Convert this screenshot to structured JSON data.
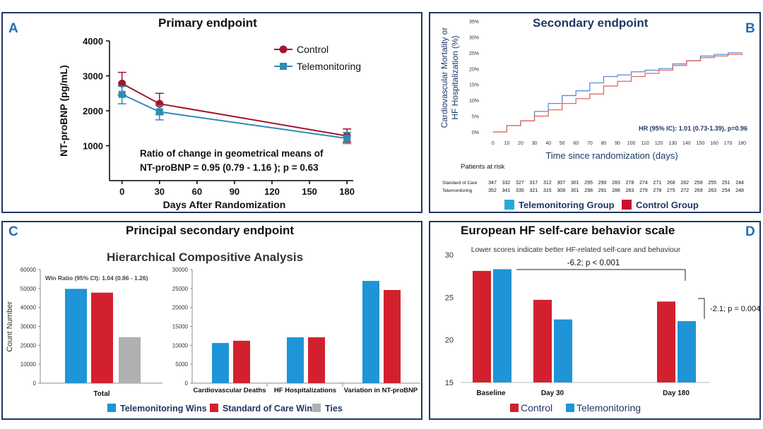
{
  "colors": {
    "control": "#a0172f",
    "tele": "#2e8bb5",
    "red": "#d3202e",
    "blue": "#1f94d6",
    "gray": "#b0b0b0",
    "navy": "#1f3864",
    "label": "#1f6fb5"
  },
  "panelA": {
    "letter": "A",
    "title": "Primary endpoint",
    "note_line1": "Ratio of change in geometrical means of",
    "note_line2": "NT-proBNP =  0.95 (0.79 - 1.16 ); p = 0.63",
    "chart_data": {
      "type": "line",
      "xlabel": "Days After Randomization",
      "ylabel": "NT-proBNP (pg/mL)",
      "x_ticks": [
        "0",
        "30",
        "60",
        "90",
        "120",
        "150",
        "180"
      ],
      "y_ticks": [
        "1000",
        "2000",
        "3000",
        "4000"
      ],
      "xlim": [
        -10,
        185
      ],
      "ylim": [
        0,
        4000
      ],
      "legend": "top-right",
      "series": [
        {
          "name": "Control",
          "x": [
            0,
            30,
            180
          ],
          "y": [
            2780,
            2200,
            1280
          ],
          "err_low": [
            2450,
            1900,
            1100
          ],
          "err_high": [
            3100,
            2500,
            1480
          ]
        },
        {
          "name": "Telemonitoring",
          "x": [
            0,
            30,
            180
          ],
          "y": [
            2470,
            1970,
            1210
          ],
          "err_low": [
            2200,
            1740,
            1060
          ],
          "err_high": [
            2700,
            2150,
            1380
          ]
        }
      ]
    }
  },
  "panelB": {
    "letter": "B",
    "title": "Secondary endpoint",
    "hr_text": "HR (95% IC): 1.01 (0.73-1.39), p=0.96",
    "risk_title": "Patients at risk",
    "risk_rows": [
      {
        "label": "Standard of Care",
        "values": [
          "347",
          "332",
          "327",
          "317",
          "312",
          "307",
          "301",
          "295",
          "290",
          "283",
          "278",
          "274",
          "271",
          "268",
          "262",
          "258",
          "255",
          "251",
          "244"
        ]
      },
      {
        "label": "Telemonitoring",
        "values": [
          "352",
          "341",
          "335",
          "321",
          "315",
          "308",
          "301",
          "298",
          "291",
          "286",
          "283",
          "279",
          "278",
          "275",
          "272",
          "269",
          "263",
          "254",
          "248"
        ]
      }
    ],
    "legend": [
      {
        "name": "Telemonitoring Group",
        "color": "#2aa7d8"
      },
      {
        "name": "Control Group",
        "color": "#c8102e"
      }
    ],
    "chart_data": {
      "type": "line",
      "xlabel": "Time since randomization (days)",
      "ylabel": "Cardiovascular Mortality or HF Hospitalization (%)",
      "x_ticks": [
        "0",
        "10",
        "20",
        "30",
        "40",
        "50",
        "60",
        "70",
        "80",
        "90",
        "100",
        "110",
        "120",
        "130",
        "140",
        "150",
        "160",
        "170",
        "180"
      ],
      "y_ticks": [
        "0%",
        "5%",
        "10%",
        "15%",
        "20%",
        "25%",
        "30%",
        "35%"
      ],
      "xlim": [
        -5,
        185
      ],
      "ylim": [
        0,
        35
      ],
      "series": [
        {
          "name": "Telemonitoring Group",
          "x": [
            0,
            10,
            20,
            30,
            40,
            50,
            60,
            70,
            80,
            90,
            100,
            110,
            120,
            130,
            140,
            150,
            160,
            170,
            180
          ],
          "y": [
            0,
            2,
            3.5,
            6.5,
            9,
            11.5,
            13,
            15.5,
            17.5,
            18,
            19,
            19.5,
            20,
            21.5,
            22.5,
            24,
            24.5,
            25,
            25
          ]
        },
        {
          "name": "Control Group",
          "x": [
            0,
            10,
            20,
            30,
            40,
            50,
            60,
            70,
            80,
            90,
            100,
            110,
            120,
            130,
            140,
            150,
            160,
            170,
            180
          ],
          "y": [
            0,
            2,
            3.5,
            5,
            7,
            9,
            10.5,
            12,
            14.5,
            16,
            17.5,
            18.5,
            19.5,
            21,
            22.5,
            23.5,
            24,
            24.5,
            25
          ]
        }
      ]
    }
  },
  "panelC": {
    "letter": "C",
    "title": "Principal secondary endpoint",
    "subtitle": "Hierarchical Compositive Analysis",
    "win_ratio": "Win Ratio (95% CI): 1.04 (0.86 - 1.26)",
    "legend": [
      "Telemonitoring Wins",
      "Standard of Care Wins",
      "Ties"
    ],
    "chart_data": [
      {
        "type": "bar",
        "ylabel": "Count Number",
        "categories": [
          "Total"
        ],
        "y_ticks": [
          "0",
          "10000",
          "20000",
          "30000",
          "40000",
          "50000",
          "60000"
        ],
        "ylim": [
          0,
          60000
        ],
        "series": [
          {
            "name": "Telemonitoring Wins",
            "values": [
              49800
            ]
          },
          {
            "name": "Standard of Care Wins",
            "values": [
              47800
            ]
          },
          {
            "name": "Ties",
            "values": [
              24300
            ]
          }
        ]
      },
      {
        "type": "bar",
        "categories": [
          "Cardiovascular Deaths",
          "HF Hospitalizations",
          "Variation in NT-proBNP"
        ],
        "y_ticks": [
          "0",
          "5000",
          "10000",
          "15000",
          "20000",
          "25000",
          "30000"
        ],
        "ylim": [
          0,
          30000
        ],
        "series": [
          {
            "name": "Telemonitoring Wins",
            "values": [
              10600,
              12100,
              27000
            ]
          },
          {
            "name": "Standard of Care Wins",
            "values": [
              11200,
              12100,
              24600
            ]
          }
        ]
      }
    ]
  },
  "panelD": {
    "letter": "D",
    "title": "European HF self-care behavior scale",
    "subtitle": "Lower scores indicate better HF-related self-care and behaviour",
    "ann1": "-6.2; p < 0.001",
    "ann2": "-2.1; p = 0.004",
    "chart_data": {
      "type": "bar",
      "categories": [
        "Baseline",
        "Day 30",
        "Day 180"
      ],
      "y_ticks": [
        "15",
        "20",
        "25",
        "30"
      ],
      "ylim": [
        15,
        30
      ],
      "series": [
        {
          "name": "Control",
          "values": [
            28.1,
            24.7,
            24.5
          ]
        },
        {
          "name": "Telemonitoring",
          "values": [
            28.3,
            22.4,
            22.2
          ]
        }
      ]
    }
  }
}
